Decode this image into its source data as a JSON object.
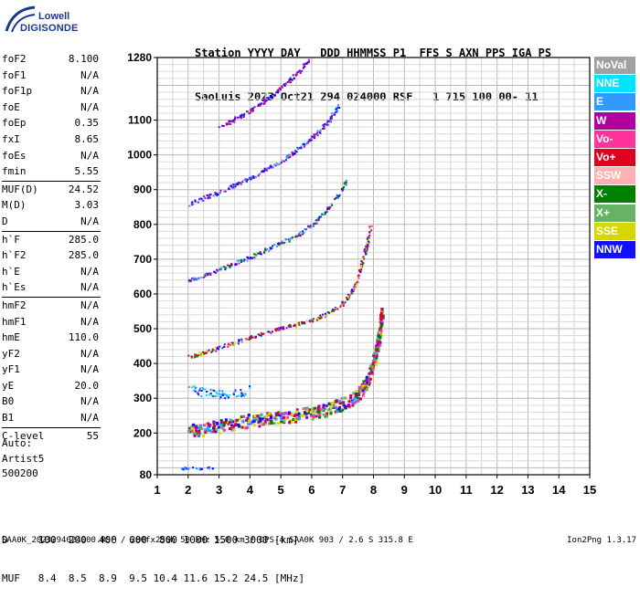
{
  "logo": {
    "line1": "Lowell",
    "line2": "DIGISONDE"
  },
  "header": {
    "row1": "Station YYYY DAY   DDD HHMMSS P1  FFS S AXN PPS IGA PS",
    "row2": "SaoLuis 2023 Oct21 294 024000 RSF   1 715 100 00- 11"
  },
  "params_groups": [
    [
      [
        "foF2",
        "8.100"
      ],
      [
        "foF1",
        "N/A"
      ],
      [
        "foF1p",
        "N/A"
      ],
      [
        "foE",
        "N/A"
      ],
      [
        "foEp",
        "0.35"
      ],
      [
        "fxI",
        "8.65"
      ],
      [
        "foEs",
        "N/A"
      ],
      [
        "fmin",
        "5.55"
      ]
    ],
    [
      [
        "MUF(D)",
        "24.52"
      ],
      [
        "M(D)",
        "3.03"
      ],
      [
        "D",
        "N/A"
      ]
    ],
    [
      [
        "h`F",
        "285.0"
      ],
      [
        "h`F2",
        "285.0"
      ],
      [
        "h`E",
        "N/A"
      ],
      [
        "h`Es",
        "N/A"
      ]
    ],
    [
      [
        "hmF2",
        "N/A"
      ],
      [
        "hmF1",
        "N/A"
      ],
      [
        "hmE",
        "110.0"
      ],
      [
        "yF2",
        "N/A"
      ],
      [
        "yF1",
        "N/A"
      ],
      [
        "yE",
        "20.0"
      ],
      [
        "B0",
        "N/A"
      ],
      [
        "B1",
        "N/A"
      ]
    ],
    [
      [
        "C-level",
        "55"
      ]
    ]
  ],
  "auto": {
    "line1": "Auto:",
    "line2": "Artist5",
    "line3": "500200"
  },
  "legend": [
    {
      "label": "NoVal",
      "color": "#a0a0a0"
    },
    {
      "label": "NNE",
      "color": "#00e5ff"
    },
    {
      "label": "E",
      "color": "#3399ff"
    },
    {
      "label": "W",
      "color": "#b0009f"
    },
    {
      "label": "Vo-",
      "color": "#ff3399"
    },
    {
      "label": "Vo+",
      "color": "#e00020"
    },
    {
      "label": "SSW",
      "color": "#ffb0b0"
    },
    {
      "label": "X-",
      "color": "#008000"
    },
    {
      "label": "X+",
      "color": "#66b366"
    },
    {
      "label": "SSE",
      "color": "#d6d600"
    },
    {
      "label": "NNW",
      "color": "#1010ff"
    }
  ],
  "footer": {
    "row_d": "D     100  200  400  600  800 1000 1500 3000 [km]",
    "row_muf": "MUF   8.4  8.5  8.9  9.5 10.4 11.6 15.2 24.5 [MHz]",
    "file_line": "SAA0K_2023294024000.RSF / 280fx256h 50 kHz 5.0 km / DPS-4 SAA0K 903 / 2.6 S 315.8 E",
    "version": "Ion2Png 1.3.17"
  },
  "chart_data": {
    "type": "scatter",
    "xlim": [
      1,
      15
    ],
    "ylim": [
      80,
      1280
    ],
    "x_ticks": [
      "1",
      "2",
      "3",
      "4",
      "5",
      "6",
      "7",
      "8",
      "9",
      "10",
      "11",
      "12",
      "13",
      "14",
      "15"
    ],
    "y_ticks": [
      {
        "value": 80,
        "label": "80"
      },
      {
        "value": 200,
        "label": "200"
      },
      {
        "value": 300,
        "label": "300"
      },
      {
        "value": 400,
        "label": "400"
      },
      {
        "value": 500,
        "label": "500"
      },
      {
        "value": 600,
        "label": "600"
      },
      {
        "value": 700,
        "label": "700"
      },
      {
        "value": 800,
        "label": "800"
      },
      {
        "value": 900,
        "label": "900"
      },
      {
        "value": 1000,
        "label": "1000"
      },
      {
        "value": 1100,
        "label": "1100"
      },
      {
        "value": 1280,
        "label": "1280"
      }
    ],
    "grid": true,
    "traces": [
      {
        "name": "F-trace",
        "colors": [
          "#e00020",
          "#ff3399",
          "#b0009f",
          "#1010ff",
          "#008000",
          "#d6d600",
          "#66b366",
          "#3399ff"
        ],
        "points": [
          [
            1.95,
            210
          ],
          [
            2.5,
            216
          ],
          [
            3.0,
            224
          ],
          [
            3.5,
            232
          ],
          [
            4.0,
            238
          ],
          [
            4.5,
            243
          ],
          [
            5.0,
            248
          ],
          [
            5.5,
            254
          ],
          [
            6.0,
            262
          ],
          [
            6.5,
            272
          ],
          [
            7.0,
            288
          ],
          [
            7.4,
            305
          ],
          [
            7.7,
            335
          ],
          [
            7.9,
            380
          ],
          [
            8.05,
            430
          ],
          [
            8.15,
            480
          ],
          [
            8.2,
            520
          ],
          [
            8.25,
            560
          ]
        ]
      },
      {
        "name": "2F-trace",
        "colors": [
          "#1010ff",
          "#b0009f",
          "#ff3399",
          "#008000",
          "#d6d600",
          "#e00020"
        ],
        "points": [
          [
            1.95,
            420
          ],
          [
            2.5,
            432
          ],
          [
            3.0,
            448
          ],
          [
            3.5,
            462
          ],
          [
            4.0,
            476
          ],
          [
            4.5,
            490
          ],
          [
            5.0,
            502
          ],
          [
            5.5,
            514
          ],
          [
            6.0,
            526
          ],
          [
            6.5,
            545
          ],
          [
            7.0,
            575
          ],
          [
            7.3,
            610
          ],
          [
            7.5,
            655
          ],
          [
            7.7,
            720
          ],
          [
            7.9,
            800
          ]
        ]
      },
      {
        "name": "3F-trace",
        "colors": [
          "#1010ff",
          "#b0009f",
          "#008000",
          "#3399ff"
        ],
        "points": [
          [
            1.95,
            640
          ],
          [
            2.5,
            655
          ],
          [
            3.0,
            672
          ],
          [
            3.5,
            690
          ],
          [
            4.0,
            708
          ],
          [
            4.5,
            728
          ],
          [
            5.0,
            748
          ],
          [
            5.5,
            770
          ],
          [
            6.0,
            800
          ],
          [
            6.5,
            845
          ],
          [
            7.0,
            905
          ],
          [
            7.1,
            930
          ]
        ]
      },
      {
        "name": "4F-trace",
        "colors": [
          "#1010ff",
          "#b0009f",
          "#3399ff"
        ],
        "points": [
          [
            2.0,
            860
          ],
          [
            2.5,
            878
          ],
          [
            3.0,
            895
          ],
          [
            3.5,
            915
          ],
          [
            4.0,
            935
          ],
          [
            4.5,
            960
          ],
          [
            5.0,
            985
          ],
          [
            5.5,
            1015
          ],
          [
            6.0,
            1050
          ],
          [
            6.5,
            1095
          ],
          [
            6.9,
            1150
          ]
        ]
      },
      {
        "name": "5F-trace",
        "colors": [
          "#1010ff",
          "#b0009f"
        ],
        "points": [
          [
            3.0,
            1080
          ],
          [
            3.5,
            1105
          ],
          [
            4.0,
            1130
          ],
          [
            4.5,
            1160
          ],
          [
            5.0,
            1195
          ],
          [
            5.5,
            1235
          ],
          [
            5.9,
            1275
          ]
        ]
      },
      {
        "name": "E-spread",
        "colors": [
          "#3399ff",
          "#00e5ff",
          "#1010ff"
        ],
        "points": [
          [
            2.0,
            330
          ],
          [
            2.5,
            318
          ],
          [
            3.0,
            312
          ],
          [
            3.5,
            318
          ],
          [
            4.0,
            325
          ]
        ]
      },
      {
        "name": "low-echo",
        "colors": [
          "#1010ff",
          "#3399ff"
        ],
        "points": [
          [
            1.7,
            100
          ],
          [
            2.0,
            101
          ],
          [
            2.4,
            100
          ],
          [
            2.8,
            102
          ]
        ]
      }
    ]
  }
}
